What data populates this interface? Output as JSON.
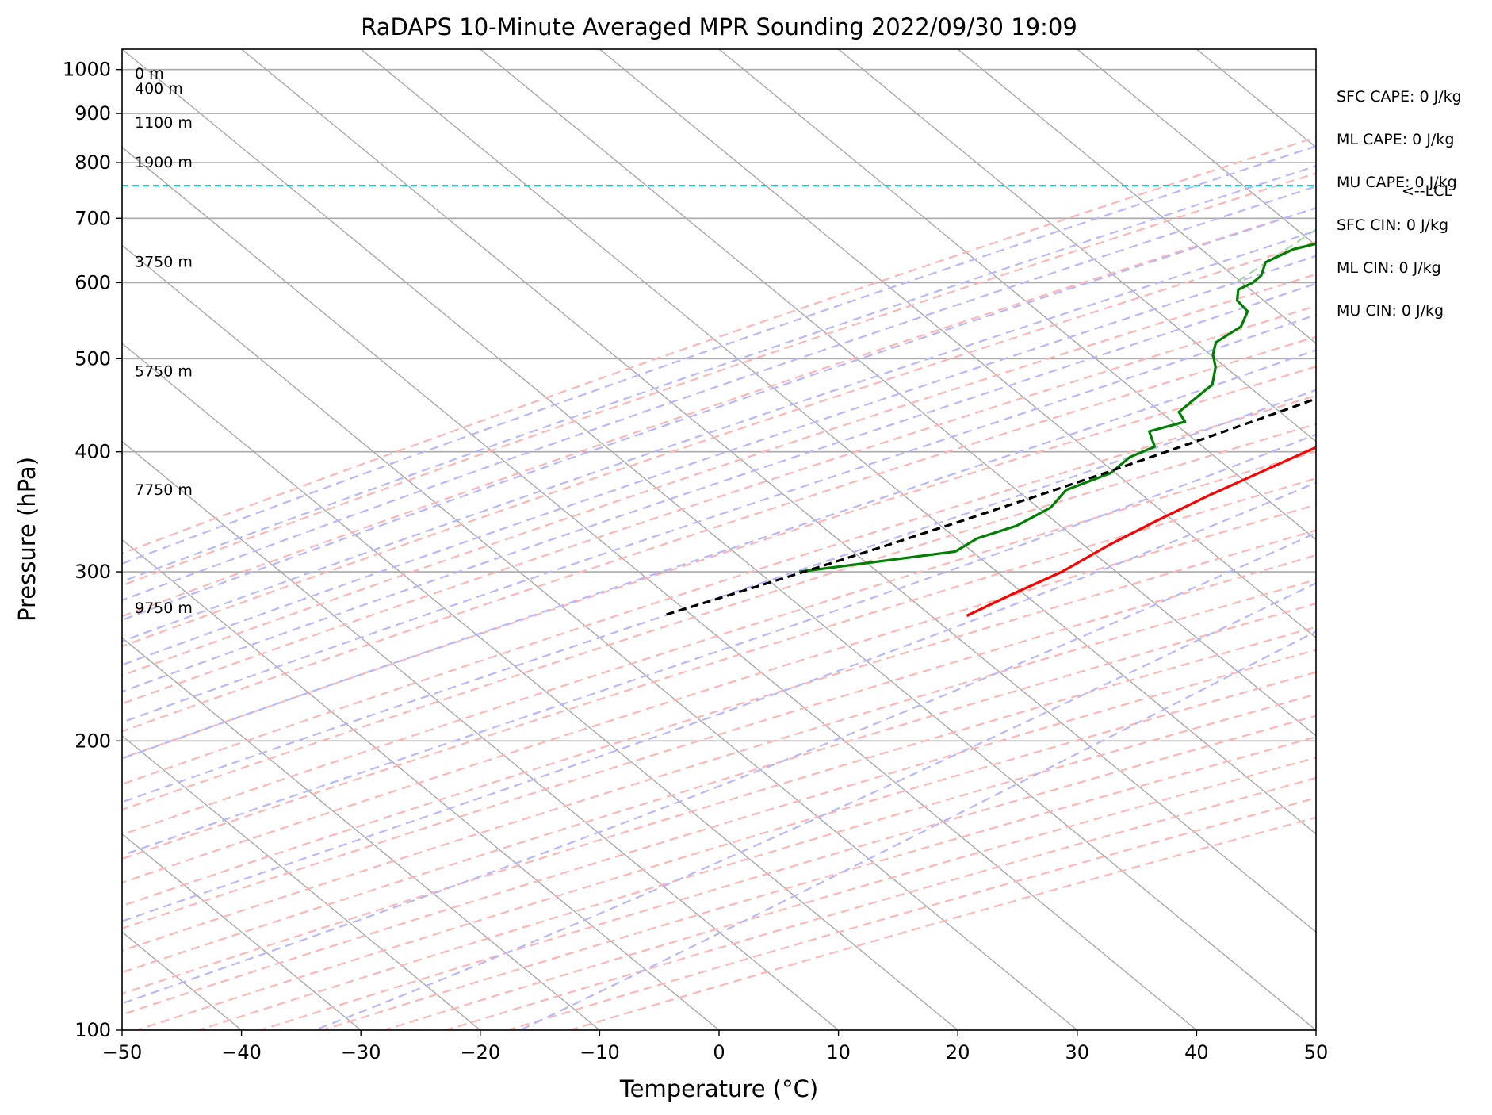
{
  "chart_data": {
    "type": "skew-t log-p sounding",
    "title": "RaDAPS 10-Minute Averaged MPR Sounding 2022/09/30 19:09",
    "xlabel": "Temperature (°C)",
    "ylabel": "Pressure (hPa)",
    "xlim": [
      -50,
      50
    ],
    "ylim": [
      1050,
      100
    ],
    "y_scale": "log",
    "grid": true,
    "x_ticks": [
      -50,
      -40,
      -30,
      -20,
      -10,
      0,
      10,
      20,
      30,
      40,
      50
    ],
    "x_tick_labels": [
      "−50",
      "−40",
      "−30",
      "−20",
      "−10",
      "0",
      "10",
      "20",
      "30",
      "40",
      "50"
    ],
    "y_ticks": [
      1000,
      900,
      800,
      700,
      600,
      500,
      400,
      300,
      200,
      100
    ],
    "y_tick_labels": [
      "1000",
      "900",
      "800",
      "700",
      "600",
      "500",
      "400",
      "300",
      "200",
      "100"
    ],
    "series": [
      {
        "role": "temperature",
        "color": "#ff0000",
        "pressure": [
          992,
          985,
          975,
          962,
          950,
          935,
          920,
          905,
          893,
          880,
          865,
          850,
          830,
          815,
          800,
          785,
          770,
          755,
          740,
          720,
          700,
          680,
          660,
          640,
          615,
          595,
          570,
          550,
          530,
          510,
          490,
          470,
          455,
          440,
          420,
          400,
          380,
          360,
          340,
          320,
          300,
          285,
          270
        ],
        "temperature": [
          26.8,
          24.0,
          22.1,
          21.0,
          19.8,
          19.0,
          18.9,
          18.0,
          17.8,
          17.0,
          16.4,
          15.8,
          15.3,
          14.8,
          14.5,
          14.0,
          13.5,
          13.0,
          12.4,
          11.8,
          11.2,
          10.0,
          8.8,
          7.6,
          6.0,
          4.8,
          3.2,
          1.8,
          0.3,
          -1.2,
          -2.6,
          -4.0,
          -5.0,
          -6.4,
          -8.0,
          -9.8,
          -11.6,
          -13.5,
          -15.2,
          -16.8,
          -18.0,
          -19.8,
          -21.5
        ]
      },
      {
        "role": "dewpoint",
        "color": "#008000",
        "pressure": [
          992,
          985,
          975,
          965,
          955,
          945,
          940,
          925,
          915,
          905,
          895,
          885,
          875,
          860,
          845,
          830,
          815,
          800,
          790,
          760,
          740,
          725,
          715,
          700,
          680,
          665,
          650,
          630,
          610,
          600,
          590,
          575,
          560,
          540,
          520,
          505,
          490,
          470,
          455,
          440,
          430,
          420,
          405,
          395,
          380,
          365,
          350,
          335,
          325,
          315,
          300
        ],
        "temperature": [
          8.5,
          5.0,
          4.2,
          3.8,
          4.5,
          4.1,
          5.2,
          7.8,
          9.2,
          8.8,
          8.2,
          7.8,
          6.2,
          3.6,
          3.1,
          1.6,
          0.4,
          -0.6,
          -2.0,
          -20.0,
          -22.0,
          -23.0,
          -24.0,
          -28.0,
          -29.0,
          -29.2,
          -31.5,
          -32.5,
          -31.5,
          -31.5,
          -32.0,
          -31.0,
          -29.0,
          -28.0,
          -28.5,
          -27.5,
          -26.0,
          -24.5,
          -24.5,
          -24.5,
          -23.0,
          -25.0,
          -23.0,
          -24.0,
          -24.0,
          -26.0,
          -25.5,
          -26.5,
          -28.5,
          -29.0,
          -40.0
        ]
      },
      {
        "role": "parcel-path",
        "color": "#000000",
        "pressure": [
          992,
          980,
          960,
          940,
          920,
          900,
          880,
          860,
          840,
          820,
          800,
          780,
          757,
          740,
          720,
          700,
          680,
          660,
          640,
          620,
          600,
          580,
          560,
          540,
          520,
          500,
          480,
          460,
          440,
          420,
          400,
          380,
          360,
          340,
          320,
          300,
          280,
          270
        ],
        "temperature": [
          26.8,
          25.9,
          24.4,
          22.8,
          21.3,
          19.7,
          18.1,
          16.5,
          14.8,
          13.1,
          11.4,
          9.7,
          7.5,
          6.8,
          5.8,
          4.9,
          3.8,
          2.7,
          1.5,
          0.2,
          -1.2,
          -2.6,
          -4.2,
          -5.8,
          -7.6,
          -9.5,
          -11.5,
          -13.7,
          -16.1,
          -18.7,
          -21.5,
          -24.5,
          -27.8,
          -31.4,
          -35.3,
          -39.6,
          -44.4,
          -47.0
        ]
      }
    ],
    "lcl_pressure": 757,
    "lcl_label": "<--LCL",
    "height_labels": [
      {
        "pressure": 990,
        "label": "0 m"
      },
      {
        "pressure": 955,
        "label": "400 m"
      },
      {
        "pressure": 880,
        "label": "1100 m"
      },
      {
        "pressure": 800,
        "label": "1900 m"
      },
      {
        "pressure": 630,
        "label": "3750 m"
      },
      {
        "pressure": 485,
        "label": "5750 m"
      },
      {
        "pressure": 365,
        "label": "7750 m"
      },
      {
        "pressure": 275,
        "label": "9750 m"
      }
    ],
    "indices": [
      "SFC CAPE: 0 J/kg",
      "ML CAPE: 0 J/kg",
      "MU CAPE: 0 J/kg",
      "SFC CIN: 0 J/kg",
      "ML CIN: 0 J/kg",
      "MU CIN: 0 J/kg"
    ],
    "reference_lines": {
      "isotherms_color": "#a9a9a9",
      "dry_adiabats_color": "#ffb6b6",
      "moist_adiabats_color": "#b8b8ff",
      "mixing_ratio_color": "#9fd39f",
      "lcl_color": "#00c0c0"
    }
  }
}
